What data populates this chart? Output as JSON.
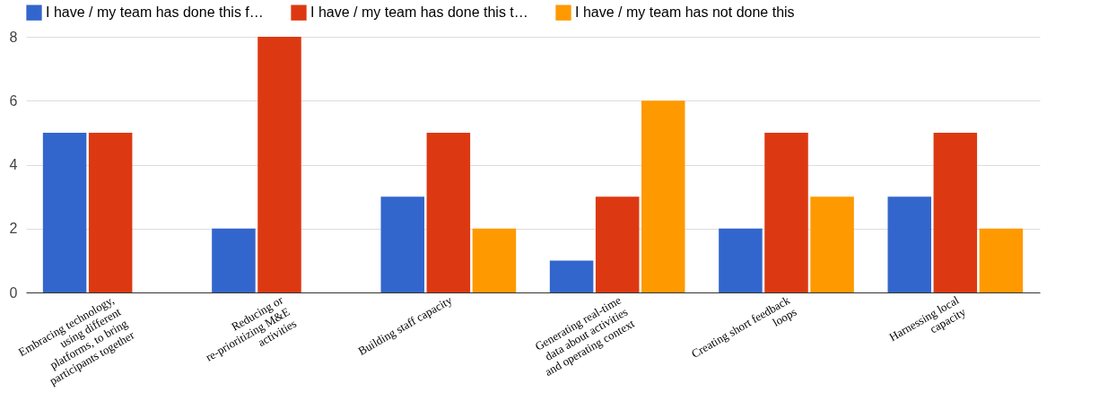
{
  "chart_data": {
    "type": "bar",
    "categories": [
      "Embracing technology, using different platforms, to bring participants together",
      "Reducing or re-prioritizing M&E activities",
      "Building staff capacity",
      "Generating real-time data about activities and operating context",
      "Creating short feedback loops",
      "Harnessing local capacity"
    ],
    "series": [
      {
        "name": "I have / my team has done this f…",
        "color": "#3366cc",
        "values": [
          5,
          2,
          3,
          1,
          2,
          3
        ]
      },
      {
        "name": "I have / my team has done this t…",
        "color": "#dc3912",
        "values": [
          5,
          8,
          5,
          3,
          5,
          5
        ]
      },
      {
        "name": "I have / my team has not done this",
        "color": "#ff9900",
        "values": [
          0,
          0,
          2,
          6,
          3,
          2
        ]
      }
    ],
    "ylim": [
      0,
      8
    ],
    "yticks": [
      0,
      2,
      4,
      6,
      8
    ],
    "grid": "y",
    "legend": "top"
  }
}
